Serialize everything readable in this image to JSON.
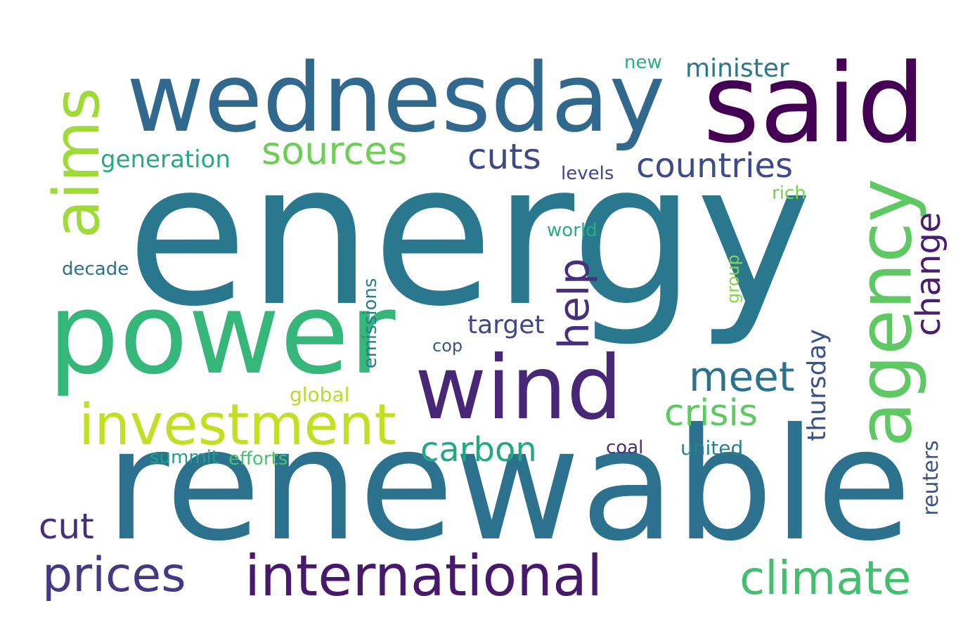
{
  "words": [
    {
      "text": "energy",
      "color": "#2a788e"
    },
    {
      "text": "renewable",
      "color": "#2c728e"
    },
    {
      "text": "power",
      "color": "#35b779"
    },
    {
      "text": "wednesday",
      "color": "#31688e"
    },
    {
      "text": "said",
      "color": "#440154"
    },
    {
      "text": "wind",
      "color": "#482777"
    },
    {
      "text": "agency",
      "color": "#5ec962"
    },
    {
      "text": "aims",
      "color": "#a0da39"
    },
    {
      "text": "investment",
      "color": "#c2df23"
    },
    {
      "text": "international",
      "color": "#48186a"
    },
    {
      "text": "climate",
      "color": "#44bf70"
    },
    {
      "text": "prices",
      "color": "#443983"
    },
    {
      "text": "sources",
      "color": "#6ece58"
    },
    {
      "text": "countries",
      "color": "#3e4a89"
    },
    {
      "text": "cuts",
      "color": "#3e4989"
    },
    {
      "text": "generation",
      "color": "#25ab82"
    },
    {
      "text": "minister",
      "color": "#2a788e"
    },
    {
      "text": "new",
      "color": "#29af7f"
    },
    {
      "text": "levels",
      "color": "#414487"
    },
    {
      "text": "rich",
      "color": "#7ad151"
    },
    {
      "text": "help",
      "color": "#46307e"
    },
    {
      "text": "change",
      "color": "#481f70"
    },
    {
      "text": "meet",
      "color": "#2c728e"
    },
    {
      "text": "crisis",
      "color": "#5ec962"
    },
    {
      "text": "carbon",
      "color": "#22a884"
    },
    {
      "text": "cut",
      "color": "#472d7b"
    },
    {
      "text": "target",
      "color": "#404688"
    },
    {
      "text": "world",
      "color": "#27ad81"
    },
    {
      "text": "decade",
      "color": "#2c728e"
    },
    {
      "text": "group",
      "color": "#86d549"
    },
    {
      "text": "emissions",
      "color": "#277f8e"
    },
    {
      "text": "thursday",
      "color": "#3b528b"
    },
    {
      "text": "cop",
      "color": "#39568c"
    },
    {
      "text": "global",
      "color": "#b5de2b"
    },
    {
      "text": "summit",
      "color": "#1fa187"
    },
    {
      "text": "efforts",
      "color": "#4ac16d"
    },
    {
      "text": "coal",
      "color": "#472f7d"
    },
    {
      "text": "united",
      "color": "#26828e"
    },
    {
      "text": "reuters",
      "color": "#3b528b"
    }
  ]
}
